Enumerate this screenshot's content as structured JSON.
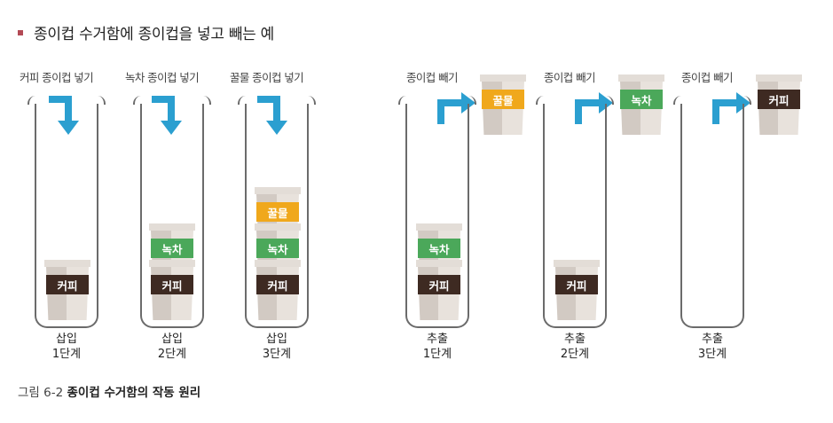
{
  "heading": "종이컵 수거함에 종이컵을 넣고 빼는 예",
  "colors": {
    "accent": "#2b9fd0",
    "coffee": "#3e2a22",
    "green_tea": "#4ba85a",
    "honey": "#f0a81c"
  },
  "panels": [
    {
      "label": "커피 종이컵 넣기",
      "stage_a": "삽입",
      "stage_b": "1단계"
    },
    {
      "label": "녹차 종이컵 넣기",
      "stage_a": "삽입",
      "stage_b": "2단계"
    },
    {
      "label": "꿀물 종이컵 넣기",
      "stage_a": "삽입",
      "stage_b": "3단계"
    },
    {
      "label": "종이컵 빼기",
      "stage_a": "추출",
      "stage_b": "1단계"
    },
    {
      "label": "종이컵 빼기",
      "stage_a": "추출",
      "stage_b": "2단계"
    },
    {
      "label": "종이컵 빼기",
      "stage_a": "추출",
      "stage_b": "3단계"
    }
  ],
  "cups": {
    "coffee": "커피",
    "green_tea": "녹차",
    "honey": "꿀물"
  },
  "caption": {
    "figure": "그림 6-2",
    "title": "종이컵 수거함의 작동 원리"
  }
}
